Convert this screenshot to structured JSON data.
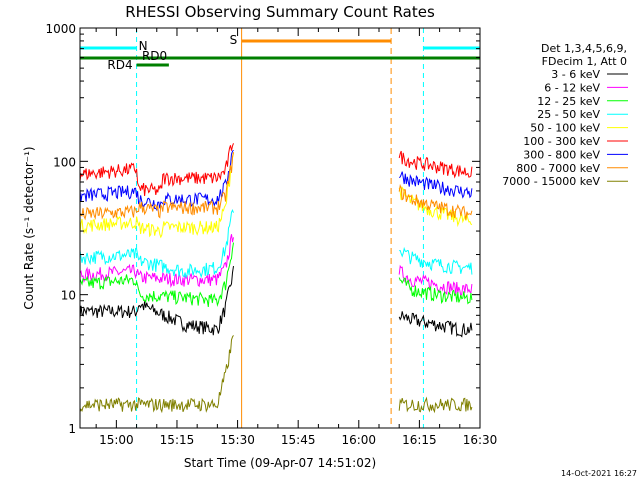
{
  "chart_data": {
    "type": "line",
    "title": "RHESSI Observing Summary Count Rates",
    "xlabel": "Start Time (09-Apr-07 14:51:02)",
    "ylabel": "Count Rate (s⁻¹ detector⁻¹)",
    "yscale": "log",
    "ylim": [
      1,
      1000
    ],
    "xlim_minutes": [
      0,
      99
    ],
    "x_ticks": [
      "15:00",
      "15:15",
      "15:30",
      "15:45",
      "16:00",
      "16:15",
      "16:30"
    ],
    "y_ticks": [
      "1",
      "10",
      "100",
      "1000"
    ],
    "legend_header": [
      "Det 1,3,4,5,6,9,",
      "FDecim 1, Att 0"
    ],
    "footer": "14-Oct-2021 16:27",
    "data_gap_minutes": [
      38,
      79
    ],
    "series": [
      {
        "name": "3 - 6 keV",
        "color": "#000000",
        "x": [
          0,
          14,
          14.5,
          26,
          34,
          36,
          38,
          79,
          82,
          88,
          94,
          97
        ],
        "y": [
          7.5,
          7.5,
          8.5,
          6,
          5.5,
          8,
          15,
          7,
          6.5,
          6,
          5.5,
          5.5
        ]
      },
      {
        "name": "6 - 12 keV",
        "color": "#ff00ff",
        "x": [
          0,
          14,
          14.5,
          26,
          34,
          36,
          38,
          79,
          82,
          88,
          94,
          97
        ],
        "y": [
          14,
          15,
          13.5,
          13,
          13,
          16,
          30,
          15,
          13,
          12,
          11,
          11
        ]
      },
      {
        "name": "12 - 25 keV",
        "color": "#00ff00",
        "x": [
          0,
          14,
          14.5,
          26,
          34,
          36,
          38,
          79,
          82,
          88,
          94,
          97
        ],
        "y": [
          12,
          13,
          10,
          9.5,
          9,
          12,
          25,
          13,
          11,
          10,
          9.5,
          9.5
        ]
      },
      {
        "name": "25 - 50 keV",
        "color": "#00ffff",
        "x": [
          0,
          14,
          14.5,
          26,
          34,
          36,
          38,
          79,
          82,
          88,
          94,
          97
        ],
        "y": [
          19,
          20,
          18,
          15,
          16,
          22,
          45,
          22,
          19,
          17,
          16,
          16
        ]
      },
      {
        "name": "50 - 100 keV",
        "color": "#ffff00",
        "x": [
          0,
          14,
          14.5,
          20,
          20.5,
          26,
          34,
          36,
          38,
          79,
          82,
          88,
          94,
          97
        ],
        "y": [
          33,
          35,
          32,
          30,
          32,
          32,
          32,
          45,
          120,
          60,
          50,
          42,
          37,
          35
        ]
      },
      {
        "name": "100 - 300 keV",
        "color": "#ff0000",
        "x": [
          0,
          14,
          14.5,
          20,
          20.5,
          26,
          34,
          36,
          38,
          79,
          82,
          88,
          94,
          97
        ],
        "y": [
          80,
          88,
          62,
          60,
          75,
          75,
          75,
          85,
          150,
          110,
          100,
          92,
          85,
          82
        ]
      },
      {
        "name": "300 - 800 keV",
        "color": "#0000ff",
        "x": [
          0,
          14,
          14.5,
          20,
          20.5,
          26,
          34,
          36,
          38,
          79,
          82,
          88,
          94,
          97
        ],
        "y": [
          55,
          60,
          52,
          48,
          52,
          52,
          52,
          65,
          130,
          80,
          72,
          65,
          60,
          58
        ]
      },
      {
        "name": "800 - 7000 keV",
        "color": "#ff8c00",
        "x": [
          0,
          14,
          14.5,
          20,
          20.5,
          26,
          34,
          36,
          38,
          79,
          82,
          88,
          94,
          97
        ],
        "y": [
          40,
          42,
          46,
          42,
          45,
          45,
          45,
          55,
          110,
          60,
          52,
          46,
          42,
          40
        ]
      },
      {
        "name": "7000 - 15000 keV",
        "color": "#808000",
        "x": [
          0,
          14,
          14.5,
          26,
          34,
          36,
          38,
          79,
          82,
          88,
          94,
          97
        ],
        "y": [
          1.5,
          1.5,
          1.5,
          1.5,
          1.5,
          2.5,
          5,
          1.5,
          1.5,
          1.5,
          1.5,
          1.5
        ]
      }
    ],
    "annotations": {
      "n_label": "N",
      "s_label": "S",
      "rd4_label": "RD4",
      "rd0_label": "RD0",
      "night_intervals": [
        [
          0,
          14
        ],
        [
          85,
          99
        ]
      ],
      "saa_interval": [
        40,
        77
      ],
      "rd4_interval": [
        0,
        14
      ],
      "rd0_interval": [
        14,
        22
      ],
      "green_bar_interval": [
        0,
        99
      ],
      "cyan_color": "#00ffff",
      "orange_color": "#ff8c00",
      "green_color": "#007f00"
    }
  }
}
